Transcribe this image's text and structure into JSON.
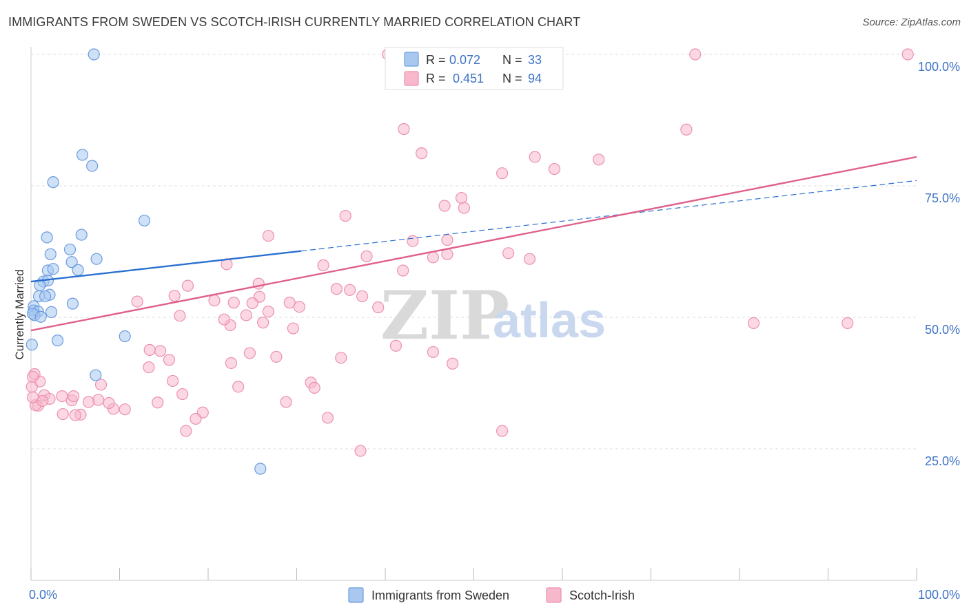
{
  "title": "IMMIGRANTS FROM SWEDEN VS SCOTCH-IRISH CURRENTLY MARRIED CORRELATION CHART",
  "source": "Source: ZipAtlas.com",
  "watermark": {
    "zip": "ZIP",
    "atlas": "atlas"
  },
  "colors": {
    "sweden_fill": "#a8c8f0",
    "sweden_stroke": "#6b9be0",
    "sweden_line": "#2a6fd0",
    "irish_fill": "#f7b8cc",
    "irish_stroke": "#ec90ae",
    "irish_line": "#e0608a",
    "tick_text": "#3d72c6",
    "grid": "#dddddd"
  },
  "chart_data": {
    "type": "scatter",
    "title": "IMMIGRANTS FROM SWEDEN VS SCOTCH-IRISH CURRENTLY MARRIED CORRELATION CHART",
    "xlabel": "",
    "ylabel": "Currently Married",
    "xlim": [
      0,
      100
    ],
    "ylim": [
      0,
      100
    ],
    "x_tick_labels": [
      "0.0%",
      "100.0%"
    ],
    "y_ticks": [
      25,
      50,
      75,
      100
    ],
    "y_tick_labels": [
      "25.0%",
      "50.0%",
      "75.0%",
      "100.0%"
    ],
    "grid": true,
    "legend_position": "top-center",
    "stats": [
      {
        "series": "Immigrants from Sweden",
        "r_label": "R =",
        "r_value": "0.072",
        "n_label": "N =",
        "n_value": "33"
      },
      {
        "series": "Scotch-Irish",
        "r_label": "R =",
        "r_value": "0.451",
        "n_label": "N =",
        "n_value": "94"
      }
    ],
    "series": [
      {
        "name": "Immigrants from Sweden",
        "x": [
          7.1,
          5.8,
          6.9,
          2.5,
          5.7,
          1.8,
          2.2,
          4.4,
          4.6,
          7.4,
          1.9,
          1.4,
          1.9,
          1.0,
          2.1,
          0.9,
          1.6,
          0.3,
          0.3,
          0.8,
          0.4,
          4.7,
          2.3,
          0.2,
          1.1,
          3.0,
          5.3,
          12.8,
          10.6,
          7.3,
          25.9,
          2.5,
          0.1
        ],
        "y": [
          100.0,
          80.9,
          78.8,
          75.7,
          65.7,
          65.2,
          62.0,
          62.9,
          60.5,
          61.1,
          58.9,
          56.8,
          57.0,
          56.1,
          54.3,
          54.0,
          54.0,
          52.1,
          51.3,
          51.1,
          50.4,
          52.6,
          51.0,
          50.7,
          50.1,
          45.6,
          59.0,
          68.4,
          46.4,
          39.0,
          21.2,
          59.2,
          44.8
        ]
      },
      {
        "name": "Scotch-Irish",
        "x": [
          40.3,
          75.0,
          99.0,
          42.1,
          74.0,
          44.1,
          53.2,
          64.1,
          59.1,
          56.9,
          26.8,
          35.5,
          48.6,
          46.7,
          37.9,
          48.9,
          47.0,
          43.1,
          42.0,
          56.3,
          53.9,
          45.4,
          33.0,
          34.5,
          36.0,
          37.4,
          47.0,
          16.2,
          22.9,
          30.3,
          22.1,
          20.7,
          25.8,
          12.0,
          25.7,
          26.8,
          29.2,
          17.7,
          26.2,
          16.8,
          39.2,
          41.2,
          45.4,
          35.0,
          47.6,
          53.2,
          81.6,
          92.2,
          14.3,
          16.0,
          17.1,
          31.6,
          32.0,
          24.3,
          22.5,
          14.6,
          13.3,
          22.6,
          29.6,
          27.7,
          19.4,
          23.4,
          24.7,
          10.6,
          9.3,
          8.8,
          7.6,
          4.6,
          6.5,
          4.8,
          3.5,
          5.6,
          5.0,
          7.9,
          1.5,
          2.1,
          3.6,
          1.0,
          0.8,
          0.5,
          1.3,
          0.4,
          0.2,
          0.1,
          0.2,
          28.8,
          37.2,
          33.5,
          18.6,
          25.0,
          15.6,
          13.4,
          17.5,
          21.8
        ],
        "y": [
          100.0,
          100.0,
          100.0,
          85.8,
          85.7,
          81.2,
          77.4,
          80.0,
          78.2,
          80.5,
          65.5,
          69.3,
          72.7,
          71.2,
          61.6,
          70.8,
          64.7,
          64.5,
          58.9,
          61.1,
          62.2,
          61.4,
          59.9,
          55.4,
          55.2,
          54.0,
          62.0,
          54.1,
          52.8,
          52.0,
          60.1,
          53.2,
          53.9,
          53.0,
          56.4,
          51.1,
          52.8,
          56.0,
          49.0,
          50.3,
          51.9,
          44.6,
          43.4,
          42.3,
          41.2,
          28.4,
          48.9,
          48.9,
          33.8,
          37.9,
          35.4,
          37.6,
          36.6,
          50.4,
          48.5,
          43.6,
          40.5,
          41.3,
          47.9,
          42.5,
          31.9,
          36.8,
          43.2,
          32.5,
          32.6,
          33.7,
          34.3,
          34.2,
          33.9,
          35.0,
          35.0,
          31.5,
          31.4,
          37.2,
          35.2,
          34.5,
          31.6,
          37.8,
          33.2,
          33.3,
          34.1,
          39.2,
          34.8,
          36.8,
          38.7,
          33.9,
          24.6,
          30.9,
          30.7,
          52.7,
          41.9,
          43.8,
          28.4,
          49.6
        ]
      }
    ],
    "trendlines": [
      {
        "series": "Immigrants from Sweden",
        "style": "solid",
        "x": [
          0,
          30.5
        ],
        "y": [
          56.8,
          62.6
        ]
      },
      {
        "series": "Immigrants from Sweden",
        "style": "dashed",
        "x": [
          30.5,
          100
        ],
        "y": [
          62.6,
          76.0
        ]
      },
      {
        "series": "Scotch-Irish",
        "style": "solid",
        "x": [
          0,
          100
        ],
        "y": [
          47.5,
          80.5
        ]
      }
    ]
  }
}
